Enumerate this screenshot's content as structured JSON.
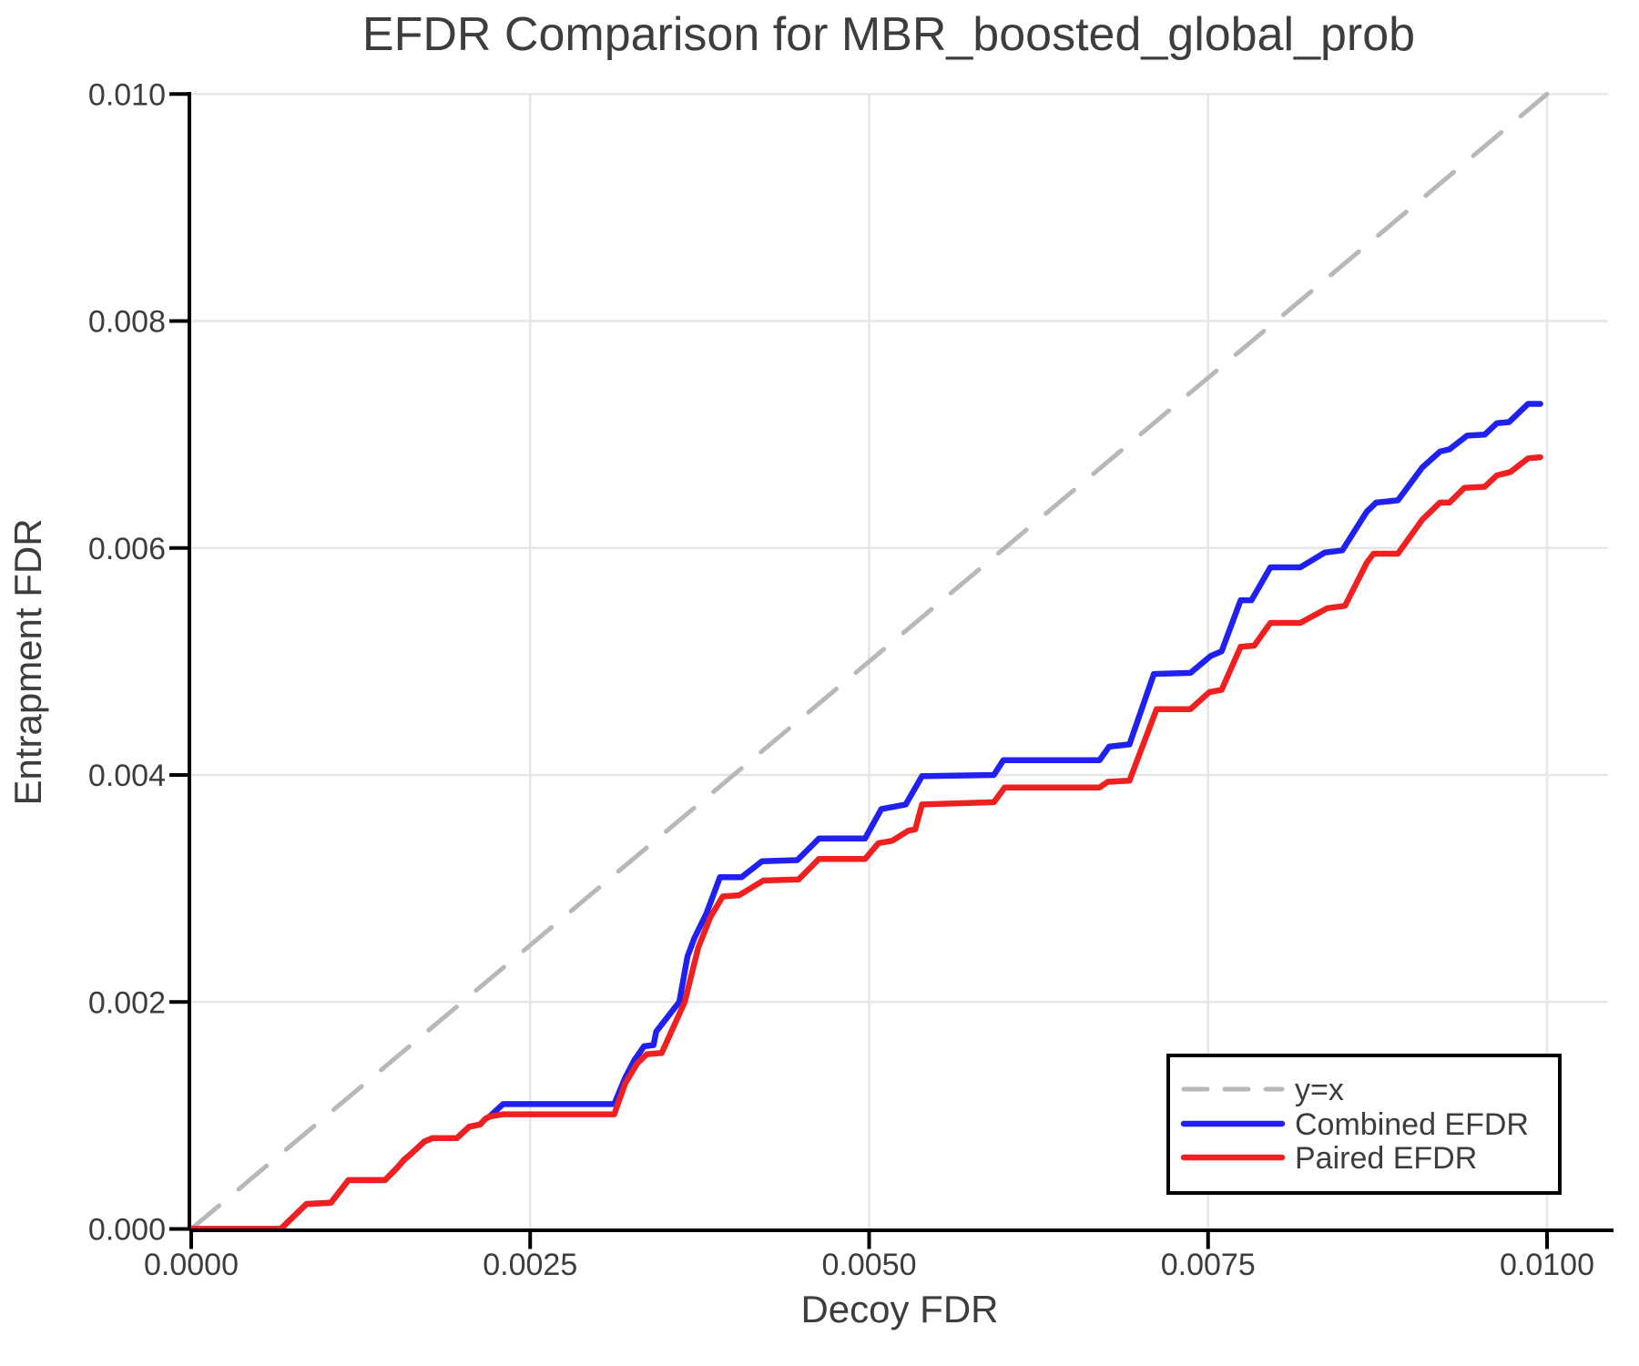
{
  "title": "EFDR Comparison for MBR_boosted_global_prob",
  "colors": {
    "combined": "#2020f0",
    "paired": "#f02020",
    "identity": "#b8b8b8",
    "grid": "#e6e6e6",
    "axis": "#000000",
    "text": "#3d3d3d",
    "background": "#ffffff"
  },
  "legend": {
    "items": [
      {
        "label": "y=x",
        "series": "y=x"
      },
      {
        "label": "Combined EFDR",
        "series": "Combined EFDR"
      },
      {
        "label": "Paired EFDR",
        "series": "Paired EFDR"
      }
    ]
  },
  "chart_data": {
    "type": "line",
    "title": "EFDR Comparison for MBR_boosted_global_prob",
    "xlabel": "Decoy FDR",
    "ylabel": "Entrapment FDR",
    "xlim": [
      0,
      0.01045
    ],
    "ylim": [
      0,
      0.01
    ],
    "grid": true,
    "legend_position": "bottom-right",
    "xticks": {
      "values": [
        0.0,
        0.0025,
        0.005,
        0.0075,
        0.01
      ],
      "labels": [
        "0.0000",
        "0.0025",
        "0.0050",
        "0.0075",
        "0.0100"
      ]
    },
    "yticks": {
      "values": [
        0.0,
        0.002,
        0.004,
        0.006,
        0.008,
        0.01
      ],
      "labels": [
        "0.000",
        "0.002",
        "0.004",
        "0.006",
        "0.008",
        "0.010"
      ]
    },
    "series": [
      {
        "name": "y=x",
        "color": "#b8b8b8",
        "style": "dashed",
        "width": 5,
        "points": [
          [
            0,
            0
          ],
          [
            0.01,
            0.01
          ]
        ]
      },
      {
        "name": "Combined EFDR",
        "color": "#2020f0",
        "style": "solid",
        "width": 6.5,
        "points": [
          [
            0.0,
            0.0
          ],
          [
            0.00066,
            0.0
          ],
          [
            0.00085,
            0.00022
          ],
          [
            0.00103,
            0.00023
          ],
          [
            0.00116,
            0.00043
          ],
          [
            0.00143,
            0.00043
          ],
          [
            0.00152,
            0.00054
          ],
          [
            0.00157,
            0.00061
          ],
          [
            0.00162,
            0.00066
          ],
          [
            0.00172,
            0.00077
          ],
          [
            0.00178,
            0.0008
          ],
          [
            0.00196,
            0.0008
          ],
          [
            0.00205,
            0.0009
          ],
          [
            0.00213,
            0.00092
          ],
          [
            0.00217,
            0.00097
          ],
          [
            0.0022,
            0.00099
          ],
          [
            0.0023,
            0.0011
          ],
          [
            0.00312,
            0.0011
          ],
          [
            0.0032,
            0.00133
          ],
          [
            0.00327,
            0.00149
          ],
          [
            0.00334,
            0.00161
          ],
          [
            0.00341,
            0.00162
          ],
          [
            0.00343,
            0.00174
          ],
          [
            0.0036,
            0.002
          ],
          [
            0.00366,
            0.0024
          ],
          [
            0.00371,
            0.00256
          ],
          [
            0.0038,
            0.00278
          ],
          [
            0.0039,
            0.0031
          ],
          [
            0.00406,
            0.0031
          ],
          [
            0.00421,
            0.00324
          ],
          [
            0.00447,
            0.00325
          ],
          [
            0.00463,
            0.00344
          ],
          [
            0.00497,
            0.00344
          ],
          [
            0.00509,
            0.0037
          ],
          [
            0.00527,
            0.00374
          ],
          [
            0.00539,
            0.00399
          ],
          [
            0.00592,
            0.004
          ],
          [
            0.00599,
            0.00413
          ],
          [
            0.0067,
            0.00413
          ],
          [
            0.00677,
            0.00425
          ],
          [
            0.00692,
            0.00427
          ],
          [
            0.0071,
            0.00489
          ],
          [
            0.00737,
            0.0049
          ],
          [
            0.00752,
            0.00505
          ],
          [
            0.0076,
            0.00509
          ],
          [
            0.00774,
            0.00554
          ],
          [
            0.00782,
            0.00554
          ],
          [
            0.00796,
            0.00583
          ],
          [
            0.00818,
            0.00583
          ],
          [
            0.00836,
            0.00596
          ],
          [
            0.00849,
            0.00598
          ],
          [
            0.00867,
            0.00632
          ],
          [
            0.00874,
            0.0064
          ],
          [
            0.0089,
            0.00642
          ],
          [
            0.00908,
            0.00671
          ],
          [
            0.00921,
            0.00685
          ],
          [
            0.00928,
            0.00687
          ],
          [
            0.00941,
            0.00699
          ],
          [
            0.00954,
            0.007
          ],
          [
            0.00963,
            0.0071
          ],
          [
            0.00972,
            0.00711
          ],
          [
            0.00986,
            0.00727
          ],
          [
            0.00995,
            0.00727
          ]
        ]
      },
      {
        "name": "Paired EFDR",
        "color": "#f02020",
        "style": "solid",
        "width": 6.5,
        "points": [
          [
            0.0,
            0.0
          ],
          [
            0.00066,
            0.0
          ],
          [
            0.00085,
            0.00022
          ],
          [
            0.00103,
            0.00023
          ],
          [
            0.00116,
            0.00043
          ],
          [
            0.00143,
            0.00043
          ],
          [
            0.00152,
            0.00054
          ],
          [
            0.00157,
            0.00061
          ],
          [
            0.00162,
            0.00066
          ],
          [
            0.00172,
            0.00077
          ],
          [
            0.00178,
            0.0008
          ],
          [
            0.00196,
            0.0008
          ],
          [
            0.00205,
            0.0009
          ],
          [
            0.00213,
            0.00092
          ],
          [
            0.00217,
            0.00097
          ],
          [
            0.0022,
            0.00099
          ],
          [
            0.0023,
            0.00101
          ],
          [
            0.00312,
            0.00101
          ],
          [
            0.0032,
            0.00128
          ],
          [
            0.00329,
            0.00146
          ],
          [
            0.00336,
            0.00154
          ],
          [
            0.00347,
            0.00155
          ],
          [
            0.00364,
            0.002
          ],
          [
            0.00374,
            0.00248
          ],
          [
            0.00383,
            0.00275
          ],
          [
            0.00392,
            0.00293
          ],
          [
            0.00404,
            0.00294
          ],
          [
            0.00422,
            0.00307
          ],
          [
            0.00448,
            0.00308
          ],
          [
            0.00463,
            0.00326
          ],
          [
            0.00497,
            0.00326
          ],
          [
            0.00507,
            0.0034
          ],
          [
            0.00517,
            0.00342
          ],
          [
            0.00529,
            0.00351
          ],
          [
            0.00534,
            0.00352
          ],
          [
            0.00539,
            0.00374
          ],
          [
            0.00592,
            0.00376
          ],
          [
            0.006,
            0.00389
          ],
          [
            0.0067,
            0.00389
          ],
          [
            0.00676,
            0.00394
          ],
          [
            0.00692,
            0.00395
          ],
          [
            0.00712,
            0.00458
          ],
          [
            0.00737,
            0.00458
          ],
          [
            0.00751,
            0.00473
          ],
          [
            0.0076,
            0.00475
          ],
          [
            0.00774,
            0.00513
          ],
          [
            0.00784,
            0.00514
          ],
          [
            0.00796,
            0.00534
          ],
          [
            0.00818,
            0.00534
          ],
          [
            0.00838,
            0.00547
          ],
          [
            0.00851,
            0.00549
          ],
          [
            0.00867,
            0.00587
          ],
          [
            0.00872,
            0.00595
          ],
          [
            0.0089,
            0.00595
          ],
          [
            0.00908,
            0.00625
          ],
          [
            0.00921,
            0.0064
          ],
          [
            0.00928,
            0.0064
          ],
          [
            0.00939,
            0.00653
          ],
          [
            0.00954,
            0.00654
          ],
          [
            0.00963,
            0.00664
          ],
          [
            0.00973,
            0.00667
          ],
          [
            0.00986,
            0.00679
          ],
          [
            0.00995,
            0.0068
          ]
        ]
      }
    ]
  }
}
